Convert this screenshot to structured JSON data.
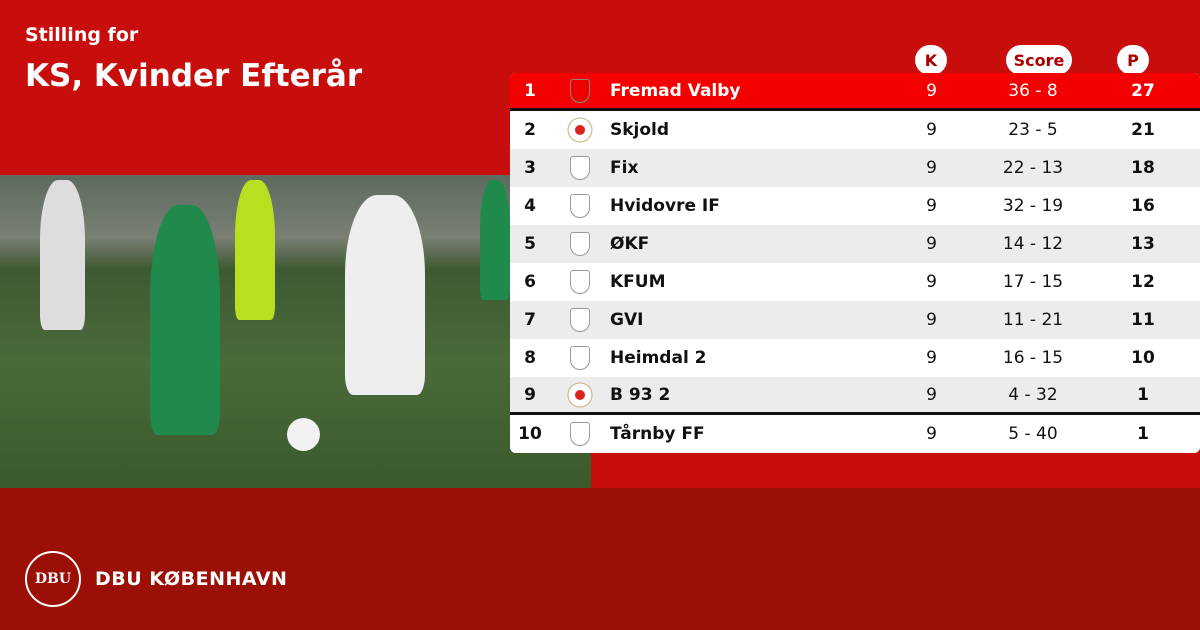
{
  "header": {
    "subtitle": "Stilling for",
    "title": "KS, Kvinder Efterår"
  },
  "columns": {
    "k": "K",
    "score": "Score",
    "p": "P"
  },
  "rows": [
    {
      "pos": "1",
      "team": "Fremad Valby",
      "k": "9",
      "score": "36 - 8",
      "p": "27",
      "logo": "shield-icon"
    },
    {
      "pos": "2",
      "team": "Skjold",
      "k": "9",
      "score": "23 - 5",
      "p": "21",
      "logo": "club-crest-icon"
    },
    {
      "pos": "3",
      "team": "Fix",
      "k": "9",
      "score": "22 - 13",
      "p": "18",
      "logo": "shield-icon"
    },
    {
      "pos": "4",
      "team": "Hvidovre IF",
      "k": "9",
      "score": "32 - 19",
      "p": "16",
      "logo": "shield-icon"
    },
    {
      "pos": "5",
      "team": "ØKF",
      "k": "9",
      "score": "14 - 12",
      "p": "13",
      "logo": "shield-icon"
    },
    {
      "pos": "6",
      "team": "KFUM",
      "k": "9",
      "score": "17 - 15",
      "p": "12",
      "logo": "shield-icon"
    },
    {
      "pos": "7",
      "team": "GVI",
      "k": "9",
      "score": "11 - 21",
      "p": "11",
      "logo": "shield-icon"
    },
    {
      "pos": "8",
      "team": "Heimdal 2",
      "k": "9",
      "score": "16 - 15",
      "p": "10",
      "logo": "shield-icon"
    },
    {
      "pos": "9",
      "team": "B 93 2",
      "k": "9",
      "score": "4 - 32",
      "p": "1",
      "logo": "club-crest-icon"
    },
    {
      "pos": "10",
      "team": "Tårnby FF",
      "k": "9",
      "score": "5 - 40",
      "p": "1",
      "logo": "shield-icon"
    }
  ],
  "footer": {
    "brand": "DBU KØBENHAVN",
    "seal": "DBU"
  },
  "colors": {
    "background": "#c80d0d",
    "footer": "#9c0f06",
    "leader": "#f40000"
  }
}
